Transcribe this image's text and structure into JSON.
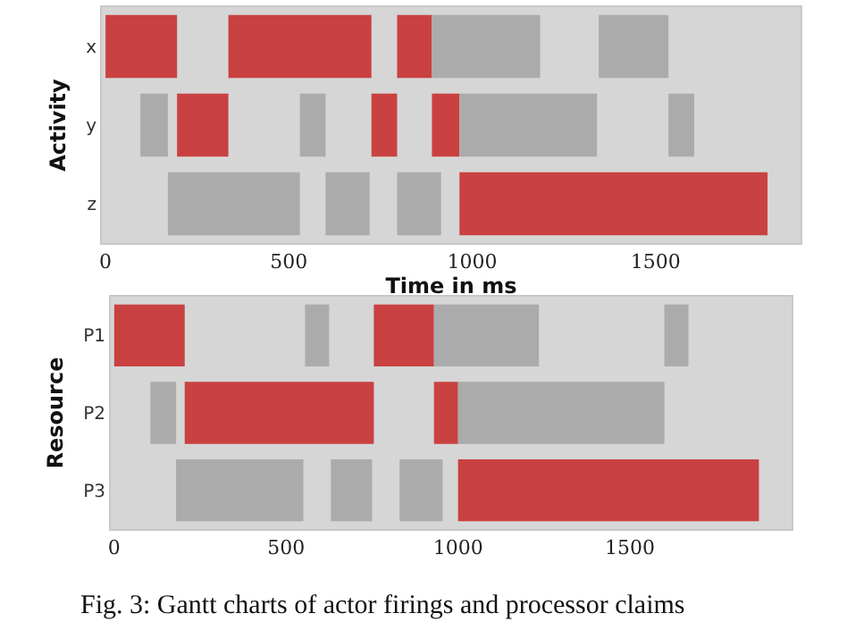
{
  "chart_data": [
    {
      "type": "bar",
      "orientation": "horizontal",
      "ylabel": "Activity",
      "xlabel": "Time in ms",
      "categories": [
        "x",
        "y",
        "z"
      ],
      "xlim": [
        -10,
        1895
      ],
      "xticks": [
        0,
        500,
        1000,
        1500
      ],
      "series": [
        {
          "color": "#c94141",
          "values": [
            195,
            140,
            840
          ],
          "base": [
            0,
            195,
            965
          ]
        },
        {
          "color": "#c94141",
          "values": [
            390,
            70,
            null
          ],
          "base": [
            335,
            725,
            null
          ]
        },
        {
          "color": "#c94141",
          "values": [
            95,
            75,
            null
          ],
          "base": [
            795,
            890,
            null
          ]
        },
        {
          "color": "#ababab",
          "values": [
            295,
            75,
            360
          ],
          "base": [
            890,
            95,
            170
          ]
        },
        {
          "color": "#ababab",
          "values": [
            190,
            70,
            120
          ],
          "base": [
            1345,
            530,
            600
          ]
        },
        {
          "color": "#ababab",
          "values": [
            null,
            375,
            120
          ],
          "base": [
            null,
            965,
            795
          ]
        },
        {
          "color": "#ababab",
          "values": [
            null,
            70,
            null
          ],
          "base": [
            null,
            1535,
            null
          ]
        }
      ]
    },
    {
      "type": "bar",
      "orientation": "horizontal",
      "ylabel": "Resource",
      "categories": [
        "P1",
        "P2",
        "P3"
      ],
      "xlim": [
        -10,
        1970
      ],
      "xticks": [
        0,
        500,
        1000,
        1500
      ],
      "annotations": [
        "Fig. 3: Gantt charts of actor firings and processor claims"
      ],
      "series": [
        {
          "color": "#c94141",
          "values": [
            205,
            550,
            875
          ],
          "base": [
            0,
            205,
            1000
          ]
        },
        {
          "color": "#c94141",
          "values": [
            175,
            70,
            null
          ],
          "base": [
            755,
            930,
            null
          ]
        },
        {
          "color": "#ababab",
          "values": [
            70,
            75,
            370
          ],
          "base": [
            555,
            105,
            180
          ]
        },
        {
          "color": "#ababab",
          "values": [
            305,
            600,
            120
          ],
          "base": [
            930,
            1000,
            630
          ]
        },
        {
          "color": "#ababab",
          "values": [
            70,
            null,
            125
          ],
          "base": [
            1600,
            null,
            830
          ]
        }
      ]
    }
  ]
}
